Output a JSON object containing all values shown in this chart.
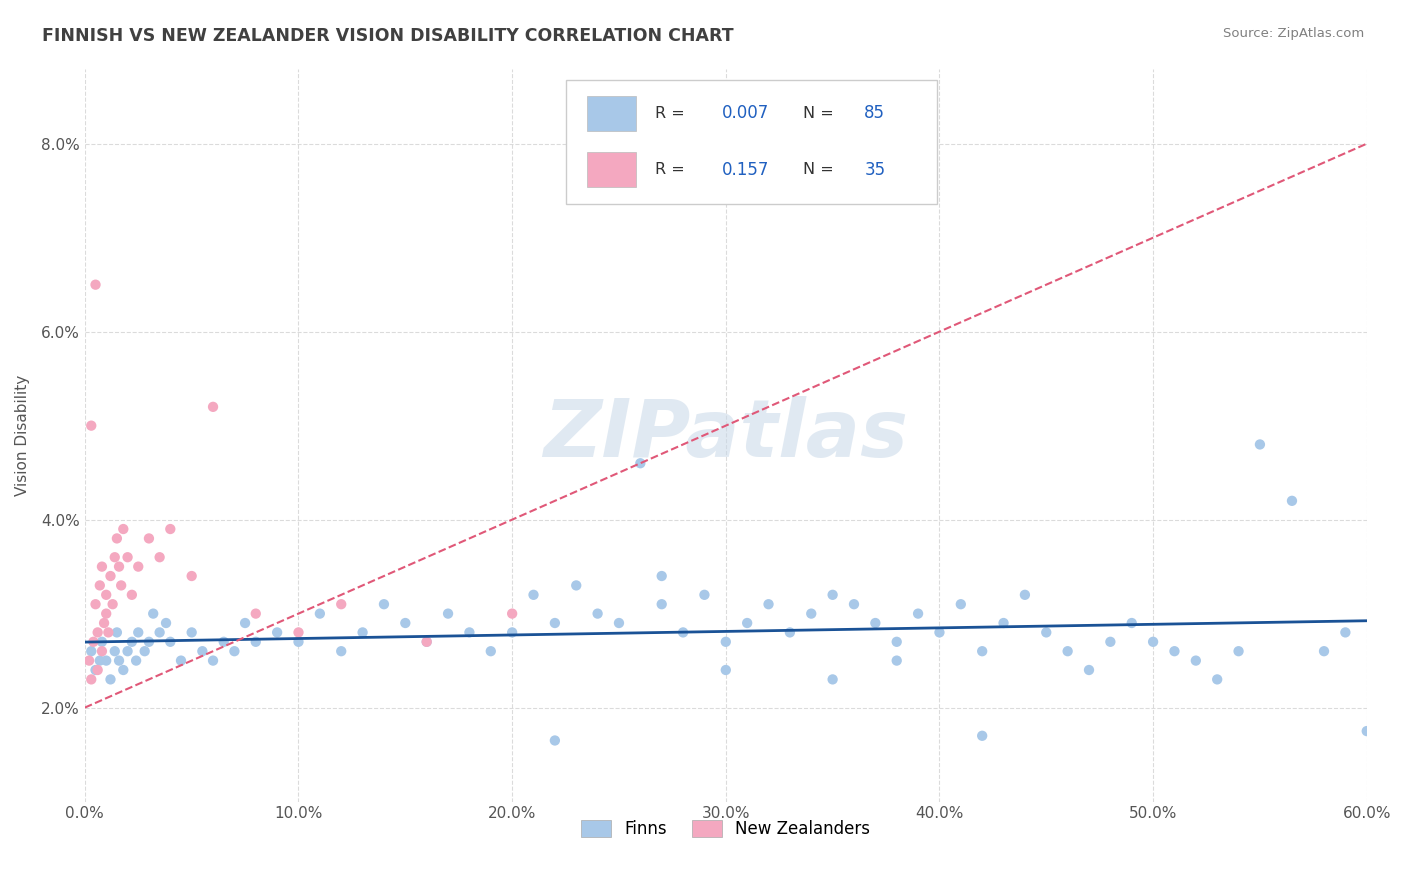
{
  "title": "FINNISH VS NEW ZEALANDER VISION DISABILITY CORRELATION CHART",
  "source": "Source: ZipAtlas.com",
  "xlabel_vals": [
    0,
    10,
    20,
    30,
    40,
    50,
    60
  ],
  "ylabel_vals": [
    2,
    4,
    6,
    8
  ],
  "ylabel_label": "Vision Disability",
  "legend_label1": "Finns",
  "legend_label2": "New Zealanders",
  "color_finn": "#a8c8e8",
  "color_nz": "#f4a8c0",
  "color_line_finn": "#1a5296",
  "color_line_nz": "#e05878",
  "watermark_color": "#c8d8e8",
  "R_finn": 0.007,
  "N_finn": 85,
  "R_nz": 0.157,
  "N_nz": 35,
  "watermark": "ZIPatlas",
  "legend_text_color": "#2060c0",
  "title_color": "#404040",
  "source_color": "#808080",
  "axis_color": "#c0c0c0",
  "grid_color": "#d8d8d8",
  "finn_x": [
    0.3,
    0.5,
    0.7,
    0.8,
    1.0,
    1.2,
    1.4,
    1.5,
    1.6,
    1.8,
    2.0,
    2.2,
    2.4,
    2.5,
    2.8,
    3.0,
    3.2,
    3.5,
    3.8,
    4.0,
    4.5,
    5.0,
    5.5,
    6.0,
    6.5,
    7.0,
    7.5,
    8.0,
    9.0,
    10.0,
    11.0,
    12.0,
    13.0,
    14.0,
    15.0,
    16.0,
    17.0,
    18.0,
    19.0,
    20.0,
    21.0,
    22.0,
    23.0,
    24.0,
    25.0,
    26.0,
    27.0,
    28.0,
    29.0,
    30.0,
    31.0,
    32.0,
    33.0,
    34.0,
    35.0,
    36.0,
    37.0,
    38.0,
    39.0,
    40.0,
    41.0,
    42.0,
    43.0,
    44.0,
    45.0,
    46.0,
    47.0,
    48.0,
    49.0,
    50.0,
    51.0,
    52.0,
    53.0,
    54.0,
    55.0,
    56.5,
    58.0,
    59.0,
    60.0,
    35.0,
    38.0,
    42.0,
    27.0,
    30.0,
    22.0
  ],
  "finn_y": [
    2.6,
    2.4,
    2.5,
    2.7,
    2.5,
    2.3,
    2.6,
    2.8,
    2.5,
    2.4,
    2.6,
    2.7,
    2.5,
    2.8,
    2.6,
    2.7,
    3.0,
    2.8,
    2.9,
    2.7,
    2.5,
    2.8,
    2.6,
    2.5,
    2.7,
    2.6,
    2.9,
    2.7,
    2.8,
    2.7,
    3.0,
    2.6,
    2.8,
    3.1,
    2.9,
    2.7,
    3.0,
    2.8,
    2.6,
    2.8,
    3.2,
    2.9,
    3.3,
    3.0,
    2.9,
    4.6,
    3.1,
    2.8,
    3.2,
    2.7,
    2.9,
    3.1,
    2.8,
    3.0,
    3.2,
    3.1,
    2.9,
    2.7,
    3.0,
    2.8,
    3.1,
    2.6,
    2.9,
    3.2,
    2.8,
    2.6,
    2.4,
    2.7,
    2.9,
    2.7,
    2.6,
    2.5,
    2.3,
    2.6,
    4.8,
    4.2,
    2.6,
    2.8,
    1.75,
    2.3,
    2.5,
    1.7,
    3.4,
    2.4,
    1.65
  ],
  "nz_x": [
    0.2,
    0.3,
    0.4,
    0.5,
    0.6,
    0.6,
    0.7,
    0.8,
    0.8,
    0.9,
    1.0,
    1.0,
    1.1,
    1.2,
    1.3,
    1.4,
    1.5,
    1.6,
    1.7,
    1.8,
    2.0,
    2.2,
    2.5,
    3.0,
    3.5,
    4.0,
    5.0,
    6.0,
    8.0,
    10.0,
    12.0,
    16.0,
    20.0,
    0.5,
    0.3
  ],
  "nz_y": [
    2.5,
    2.3,
    2.7,
    3.1,
    2.8,
    2.4,
    3.3,
    2.6,
    3.5,
    2.9,
    3.0,
    3.2,
    2.8,
    3.4,
    3.1,
    3.6,
    3.8,
    3.5,
    3.3,
    3.9,
    3.6,
    3.2,
    3.5,
    3.8,
    3.6,
    3.9,
    3.4,
    5.2,
    3.0,
    2.8,
    3.1,
    2.7,
    3.0,
    6.5,
    5.0
  ]
}
